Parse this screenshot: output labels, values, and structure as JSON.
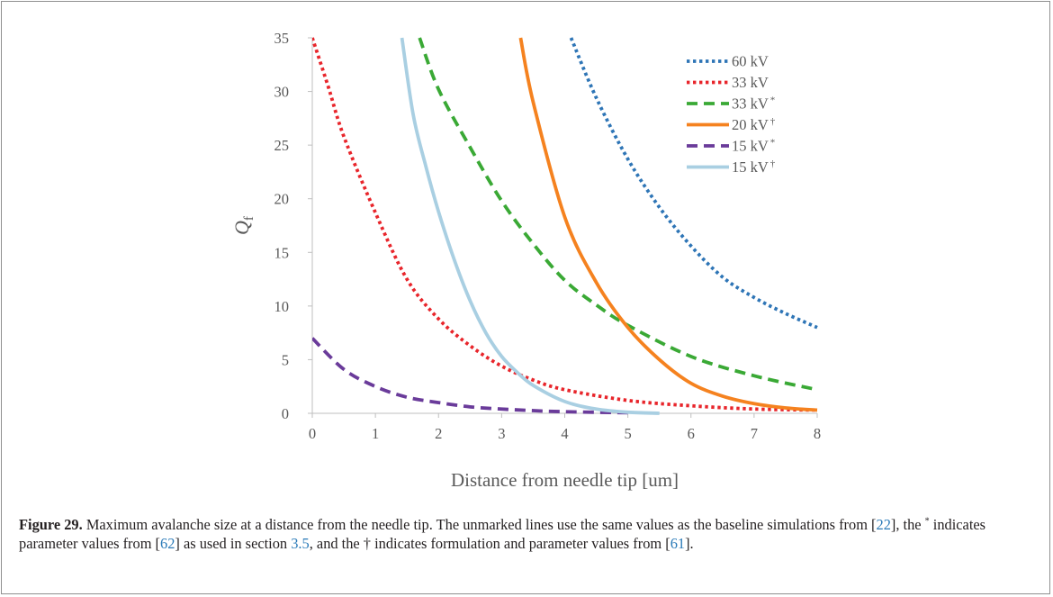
{
  "chart_data": {
    "type": "line",
    "title": "",
    "xlabel": "Distance from needle tip [um]",
    "ylabel": "Q",
    "ylabel_sub": "f",
    "xlim": [
      0,
      8
    ],
    "ylim": [
      0,
      35
    ],
    "x_ticks": [
      0,
      1,
      2,
      3,
      4,
      5,
      6,
      7,
      8
    ],
    "y_ticks": [
      0,
      5,
      10,
      15,
      20,
      25,
      30,
      35
    ],
    "grid": false,
    "legend_position": "top-right",
    "series": [
      {
        "name": "60 kV",
        "mark": "",
        "color": "#2e75b6",
        "dash": "dotted",
        "x": [
          4.1,
          4.5,
          5,
          5.5,
          6,
          6.5,
          7,
          7.5,
          8
        ],
        "y": [
          35,
          29.4,
          23.7,
          19.2,
          15.6,
          12.7,
          10.8,
          9.3,
          8
        ]
      },
      {
        "name": "33 kV",
        "mark": "",
        "color": "#e8252b",
        "dash": "dotted",
        "x": [
          0,
          0.25,
          0.5,
          1,
          1.5,
          2,
          2.5,
          3,
          3.5,
          4,
          5,
          6,
          7,
          8
        ],
        "y": [
          35,
          30.5,
          25.8,
          18.7,
          12.5,
          8.8,
          6.3,
          4.4,
          3.1,
          2.2,
          1.2,
          0.7,
          0.4,
          0.3
        ]
      },
      {
        "name": "33 kV",
        "mark": "*",
        "color": "#3aa935",
        "dash": "dashed",
        "x": [
          1.7,
          2,
          2.5,
          3,
          3.5,
          4,
          4.5,
          5,
          6,
          7,
          8
        ],
        "y": [
          35,
          30.2,
          24.8,
          19.8,
          15.8,
          12.4,
          10.1,
          8.2,
          5.3,
          3.5,
          2.2
        ]
      },
      {
        "name": "20 kV",
        "mark": "†",
        "color": "#f5821f",
        "dash": "solid",
        "x": [
          3.3,
          3.5,
          4,
          4.5,
          5,
          5.5,
          6,
          6.5,
          7,
          7.5,
          8
        ],
        "y": [
          35,
          29,
          18.3,
          12.2,
          8,
          5,
          2.8,
          1.6,
          0.9,
          0.5,
          0.3
        ]
      },
      {
        "name": "15 kV",
        "mark": "*",
        "color": "#6a3b9a",
        "dash": "dashed",
        "x": [
          0,
          0.5,
          1,
          1.5,
          2,
          2.5,
          3,
          3.5,
          4,
          5
        ],
        "y": [
          7,
          4.1,
          2.5,
          1.5,
          1,
          0.6,
          0.4,
          0.25,
          0.15,
          0.05
        ]
      },
      {
        "name": "15 kV",
        "mark": "†",
        "color": "#a9cfe2",
        "dash": "solid",
        "x": [
          1.42,
          1.6,
          1.8,
          2,
          2.25,
          2.5,
          2.75,
          3,
          3.25,
          3.5,
          4,
          4.5,
          5,
          5.5
        ],
        "y": [
          35,
          27.8,
          23,
          18.8,
          14.3,
          10.5,
          7.5,
          5.3,
          3.8,
          2.6,
          1.1,
          0.4,
          0.1,
          0
        ]
      }
    ]
  },
  "caption": {
    "label": "Figure 29.",
    "text_1": " Maximum avalanche size at a distance from the needle tip. The unmarked lines use the same values as the baseline simulations from [",
    "ref_1": "22",
    "text_2": "], the ",
    "sup_1": "*",
    "text_3": " indicates parameter values from [",
    "ref_2": "62",
    "text_4": "] as used in section ",
    "ref_3": "3.5",
    "text_5": ", and the † indicates formulation and parameter values from [",
    "ref_4": "61",
    "text_6": "]."
  }
}
